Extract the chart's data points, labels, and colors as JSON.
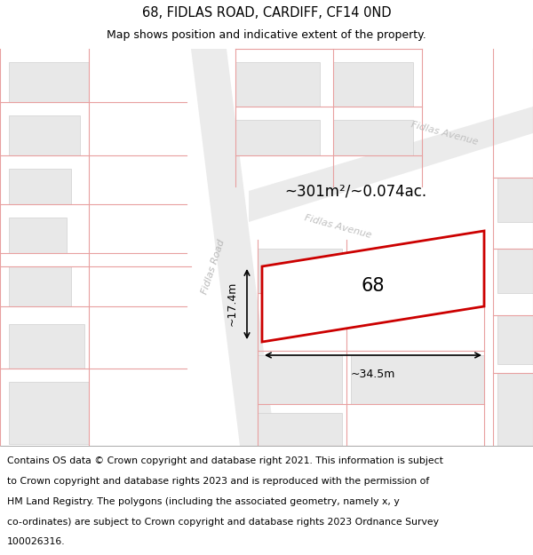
{
  "title_line1": "68, FIDLAS ROAD, CARDIFF, CF14 0ND",
  "title_line2": "Map shows position and indicative extent of the property.",
  "area_text": "~301m²/~0.074ac.",
  "dim_width": "~34.5m",
  "dim_height": "~17.4m",
  "property_number": "68",
  "map_bg": "#f7f7f7",
  "bld_fc": "#e8e8e8",
  "bld_ec": "#d0d0d0",
  "road_fc": "#e0e0e0",
  "red_line_color": "#cc0000",
  "pink_line_color": "#e8a0a0",
  "title_fontsize": 10.5,
  "subtitle_fontsize": 9,
  "footer_fontsize": 7.8,
  "footer_lines": [
    "Contains OS data © Crown copyright and database right 2021. This information is subject",
    "to Crown copyright and database rights 2023 and is reproduced with the permission of",
    "HM Land Registry. The polygons (including the associated geometry, namely x, y",
    "co-ordinates) are subject to Crown copyright and database rights 2023 Ordnance Survey",
    "100026316."
  ]
}
